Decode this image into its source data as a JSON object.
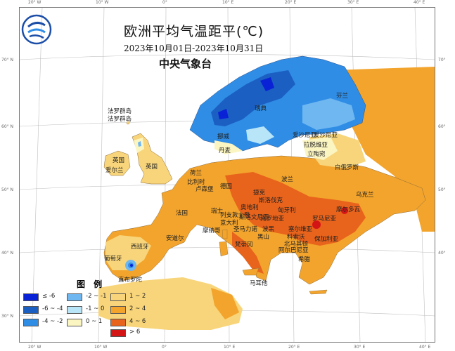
{
  "title": "欧洲平均气温距平(℃)",
  "period": "2023年10月01日-2023年10月31日",
  "agency": "中央气象台",
  "legend": {
    "title": "图 例",
    "items": [
      {
        "label": "≤ -6",
        "color": "#0a22d6"
      },
      {
        "label": "-6 ~ -4",
        "color": "#1b5fc2"
      },
      {
        "label": "-4 ~ -2",
        "color": "#2f8de6"
      },
      {
        "label": "-2 ~ -1",
        "color": "#6fb7f0"
      },
      {
        "label": "-1 ~ 0",
        "color": "#b8e6f8"
      },
      {
        "label": "0 ~ 1",
        "color": "#fbf5c2"
      },
      {
        "label": "1 ~ 2",
        "color": "#f8d57a"
      },
      {
        "label": "2 ~ 4",
        "color": "#f3a42c"
      },
      {
        "label": "4 ~ 6",
        "color": "#e8631c"
      },
      {
        "label": "> 6",
        "color": "#d41515"
      }
    ]
  },
  "ticks": {
    "top": [
      "20° W",
      "10° W",
      "0°",
      "10° E",
      "20° E",
      "30° E",
      "40° E"
    ],
    "bottom": [
      "20° W",
      "10° W",
      "0°",
      "10° E",
      "20° E",
      "30° E",
      "40° E"
    ],
    "left": [
      "70° N",
      "60° N",
      "50° N",
      "40° N",
      "30° N"
    ],
    "right": [
      "70°",
      "60°",
      "50°",
      "40°",
      "30°"
    ]
  },
  "regions": [
    "法罗群岛",
    "芬兰",
    "瑞典",
    "挪威",
    "丹麦",
    "爱沙尼亚",
    "拉脱维亚",
    "立陶宛",
    "白俄罗斯",
    "英国",
    "爱尔兰",
    "荷兰",
    "比利时",
    "卢森堡",
    "德国",
    "波兰",
    "乌克兰",
    "法国",
    "瑞士",
    "列支敦士登",
    "奥地利",
    "捷克",
    "斯洛伐克",
    "匈牙利",
    "摩尔多瓦",
    "罗马尼亚",
    "斯洛文尼亚",
    "克罗地亚",
    "塞尔维亚",
    "意大利",
    "摩纳哥",
    "安道尔",
    "圣马力诺",
    "波黑",
    "黑山",
    "科索沃",
    "北马其顿",
    "阿尔巴尼亚",
    "保加利亚",
    "希腊",
    "梵蒂冈",
    "西班牙",
    "葡萄牙",
    "直布罗陀",
    "马耳他"
  ]
}
